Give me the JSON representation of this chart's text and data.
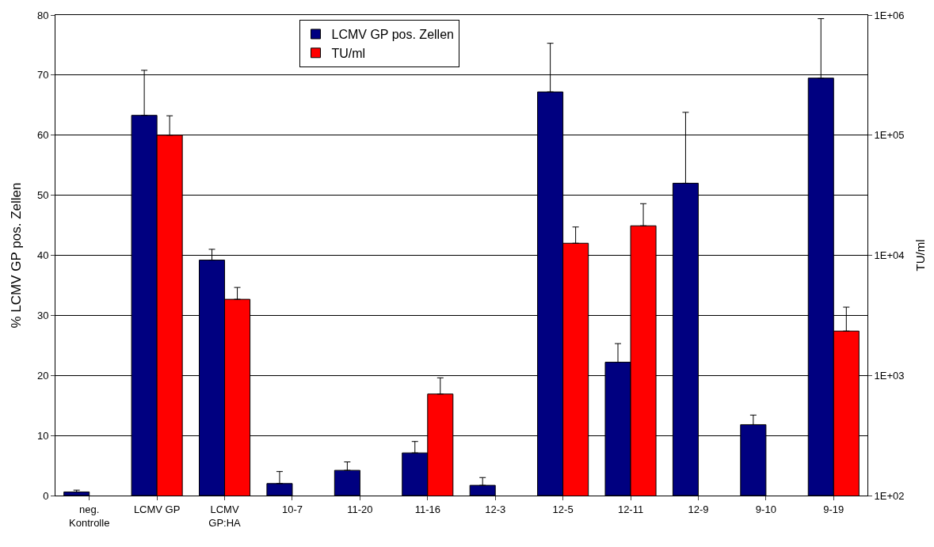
{
  "chart_data": {
    "type": "bar",
    "ylabel": "% LCMV GP pos. Zellen",
    "y2label": "TU/ml",
    "categories": [
      "neg.\nKontrolle",
      "LCMV GP",
      "LCMV\nGP:HA",
      "10-7",
      "11-20",
      "11-16",
      "12-3",
      "12-5",
      "12-11",
      "12-9",
      "9-10",
      "9-19"
    ],
    "series": [
      {
        "name": "LCMV GP pos. Zellen",
        "color": "#000080",
        "values": [
          0.6,
          63.3,
          39.2,
          2.0,
          4.2,
          7.1,
          1.7,
          67.2,
          22.2,
          52,
          11.8,
          69.5
        ],
        "errors": [
          [
            0.6,
            0.9
          ],
          [
            63.3,
            70.8
          ],
          [
            39.2,
            41
          ],
          [
            2.0,
            4.0
          ],
          [
            4.2,
            5.6
          ],
          [
            7.1,
            9.0
          ],
          [
            1.7,
            3.0
          ],
          [
            67.2,
            75.3
          ],
          [
            22.2,
            25.3
          ],
          [
            52,
            63.8
          ],
          [
            11.8,
            13.4
          ],
          [
            69.5,
            79.4
          ]
        ]
      },
      {
        "name": "TU/ml",
        "color": "#ff0000",
        "axis": "y2",
        "values": [
          null,
          100000,
          4300,
          null,
          null,
          700,
          null,
          12600,
          17600,
          null,
          null,
          2340
        ],
        "errors": [
          null,
          [
            100000,
            145000
          ],
          [
            4300,
            5400
          ],
          null,
          null,
          [
            700,
            955
          ],
          null,
          [
            12600,
            17200
          ],
          [
            17600,
            26900
          ],
          null,
          null,
          [
            2340,
            3700
          ]
        ]
      }
    ],
    "ylim": [
      0,
      80
    ],
    "yticks": [
      0,
      10,
      20,
      30,
      40,
      50,
      60,
      70,
      80
    ],
    "y2lim": [
      100,
      1000000
    ],
    "y2ticks": [
      {
        "value": 100,
        "label": "1E+02"
      },
      {
        "value": 1000,
        "label": "1E+03"
      },
      {
        "value": 10000,
        "label": "1E+04"
      },
      {
        "value": 100000,
        "label": "1E+05"
      },
      {
        "value": 1000000,
        "label": "1E+06"
      }
    ],
    "log": "y2",
    "grid": "y",
    "legend": "top"
  }
}
